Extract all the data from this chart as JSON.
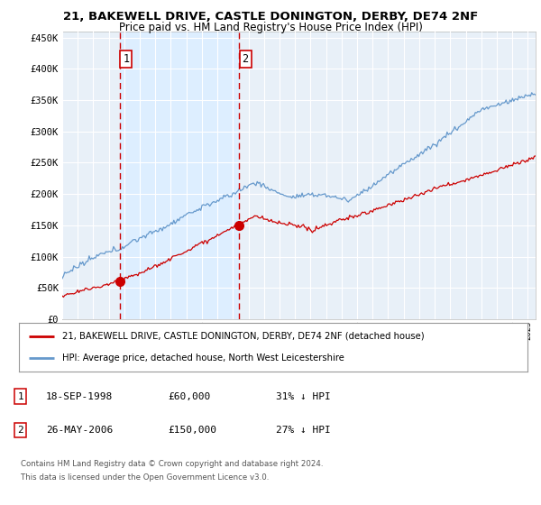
{
  "title1": "21, BAKEWELL DRIVE, CASTLE DONINGTON, DERBY, DE74 2NF",
  "title2": "Price paid vs. HM Land Registry's House Price Index (HPI)",
  "ylabel_values": [
    0,
    50000,
    100000,
    150000,
    200000,
    250000,
    300000,
    350000,
    400000,
    450000
  ],
  "ylim": [
    0,
    460000
  ],
  "xlim_start": 1995.0,
  "xlim_end": 2025.5,
  "sale1_date": 1998.72,
  "sale1_price": 60000,
  "sale1_label": "1",
  "sale2_date": 2006.4,
  "sale2_price": 150000,
  "sale2_label": "2",
  "legend_line1": "21, BAKEWELL DRIVE, CASTLE DONINGTON, DERBY, DE74 2NF (detached house)",
  "legend_line2": "HPI: Average price, detached house, North West Leicestershire",
  "table_row1": [
    "1",
    "18-SEP-1998",
    "£60,000",
    "31% ↓ HPI"
  ],
  "table_row2": [
    "2",
    "26-MAY-2006",
    "£150,000",
    "27% ↓ HPI"
  ],
  "footnote1": "Contains HM Land Registry data © Crown copyright and database right 2024.",
  "footnote2": "This data is licensed under the Open Government Licence v3.0.",
  "red_color": "#cc0000",
  "blue_color": "#6699cc",
  "blue_fill_color": "#ddeeff",
  "background_color": "#ffffff",
  "plot_bg_color": "#e8f0f8",
  "grid_color": "#ffffff"
}
